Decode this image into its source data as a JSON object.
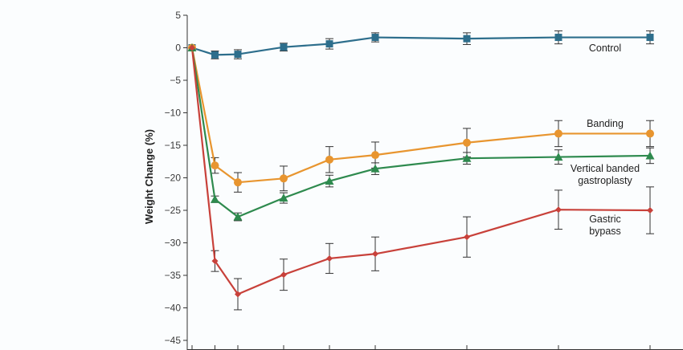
{
  "chart_data": {
    "type": "line",
    "title": "",
    "xlabel": "",
    "ylabel": "Weight Change (%)",
    "ylim": [
      -45,
      5
    ],
    "yticks": [
      5,
      0,
      -5,
      -10,
      -15,
      -20,
      -25,
      -30,
      -35,
      -40,
      -45
    ],
    "ytick_labels": [
      "5",
      "0",
      "−5",
      "−10",
      "−15",
      "−20",
      "−25",
      "−30",
      "−35",
      "−40",
      "−45"
    ],
    "x": [
      0,
      0.5,
      1,
      2,
      3,
      4,
      6,
      8,
      10
    ],
    "xlim": [
      0,
      10
    ],
    "grid": false,
    "legend": "inline labels at line ends",
    "series": [
      {
        "name": "Control",
        "label_lines": [
          "Control"
        ],
        "color": "#2d6e8c",
        "marker": "square",
        "values": [
          0,
          -1.1,
          -1.0,
          0.1,
          0.6,
          1.6,
          1.4,
          1.6,
          1.6
        ],
        "errors": [
          0,
          0.6,
          0.7,
          0.6,
          0.8,
          0.7,
          0.9,
          1.0,
          1.0
        ]
      },
      {
        "name": "Banding",
        "label_lines": [
          "Banding"
        ],
        "color": "#e8952f",
        "marker": "circle",
        "values": [
          0,
          -18.1,
          -20.7,
          -20.1,
          -17.2,
          -16.5,
          -14.6,
          -13.2,
          -13.2
        ],
        "errors": [
          0,
          1.2,
          1.5,
          1.9,
          2.0,
          2.0,
          2.2,
          2.0,
          2.0
        ]
      },
      {
        "name": "Vertical banded gastroplasty",
        "label_lines": [
          "Vertical banded",
          "gastroplasty"
        ],
        "color": "#2e8a4e",
        "marker": "triangle",
        "values": [
          0,
          -23.3,
          -26.0,
          -23.1,
          -20.5,
          -18.6,
          -17.0,
          -16.8,
          -16.6
        ],
        "errors": [
          0,
          0.5,
          0.6,
          0.8,
          0.9,
          0.9,
          0.9,
          1.1,
          1.2
        ]
      },
      {
        "name": "Gastric bypass",
        "label_lines": [
          "Gastric",
          "bypass"
        ],
        "color": "#c8413a",
        "marker": "diamond",
        "values": [
          0,
          -32.8,
          -37.9,
          -34.9,
          -32.4,
          -31.7,
          -29.1,
          -24.9,
          -25.0
        ],
        "errors": [
          0,
          1.6,
          2.4,
          2.4,
          2.3,
          2.6,
          3.1,
          3.0,
          3.6
        ]
      }
    ]
  }
}
